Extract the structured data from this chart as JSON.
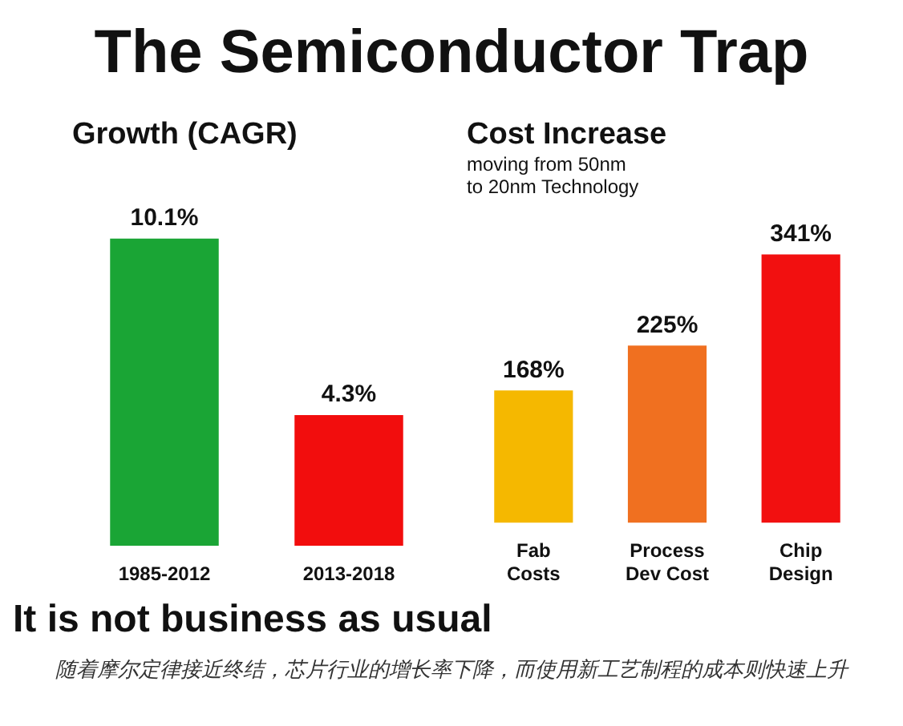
{
  "chart_data": [
    {
      "type": "other",
      "title": "The Semiconductor Trap",
      "annotations": [
        "It is not business as usual",
        "随着摩尔定律接近终结，芯片行业的增长率下降，而使用新工艺制程的成本则快速上升"
      ]
    },
    {
      "type": "bar",
      "title": "Growth (CAGR)",
      "categories": [
        "1985-2012",
        "2013-2018"
      ],
      "values": [
        10.1,
        4.3
      ],
      "colors": [
        "#1aa535",
        "#f20d0d"
      ],
      "value_labels": [
        "10.1%",
        "4.3%"
      ],
      "grid": false,
      "legend": false
    },
    {
      "type": "bar",
      "title": "Cost Increase",
      "subtitle": "moving from 50nm to 20nm Technology",
      "categories": [
        "Fab Costs",
        "Process Dev Cost",
        "Chip Design"
      ],
      "values": [
        168,
        225,
        341
      ],
      "colors": [
        "#f5b800",
        "#f07020",
        "#f21010"
      ],
      "value_labels": [
        "168%",
        "225%",
        "341%"
      ],
      "grid": false,
      "legend": false
    }
  ]
}
